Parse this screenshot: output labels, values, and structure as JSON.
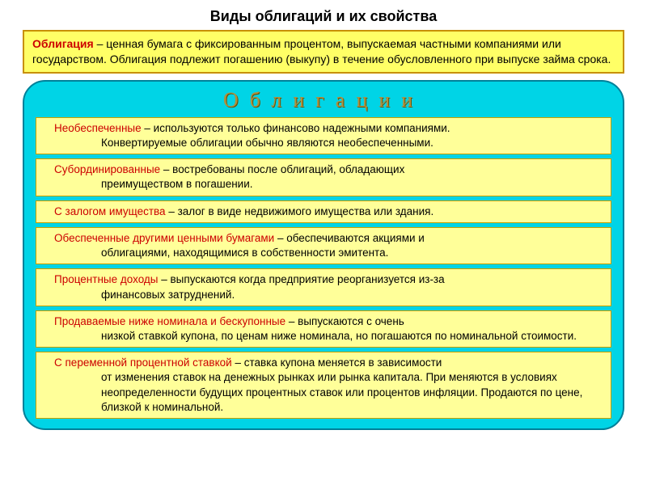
{
  "title": "Виды облигаций и их свойства",
  "definition": {
    "term": "Облигация",
    "dash": " – ",
    "text": "ценная бумага с фиксированным процентом, выпускаемая частными компаниями или государством. Облигация подлежит погашению (выкупу) в течение обусловленного при выпуске займа срока."
  },
  "panel_header": "Облигации",
  "items": [
    {
      "term": "Необеспеченные",
      "text": " – используются только финансово надежными компаниями.",
      "cont": "Конвертируемые облигации обычно являются необеспеченными."
    },
    {
      "term": "Субординированные",
      "text": " – востребованы после облигаций, обладающих",
      "cont": "преимуществом в погашении."
    },
    {
      "term": "С залогом имущества",
      "text": " – залог в виде недвижимого имущества или здания.",
      "cont": ""
    },
    {
      "term": "Обеспеченные другими ценными бумагами",
      "text": " – обеспечиваются акциями и",
      "cont": "облигациями, находящимися в собственности эмитента."
    },
    {
      "term": "Процентные доходы",
      "text": " – выпускаются когда предприятие реорганизуется из-за",
      "cont": "финансовых затруднений."
    },
    {
      "term": "Продаваемые ниже номинала и бескупонные",
      "text": " – выпускаются с очень",
      "cont": "низкой ставкой купона, по ценам ниже номинала, но погашаются по номинальной стоимости."
    },
    {
      "term": "С переменной процентной ставкой",
      "text": " – ставка купона меняется в зависимости",
      "cont": "от изменения ставок на денежных рынках или рынка капитала. При меняются в условиях неопределенности будущих процентных ставок или процентов инфляции. Продаются по цене, близкой к номинальной."
    }
  ],
  "colors": {
    "bg": "#ffffff",
    "cyan_panel": "#00d4e6",
    "panel_border": "#008099",
    "yellow_box": "#ffff66",
    "yellow_item": "#ffff99",
    "box_border": "#c89000",
    "term_color": "#cc0000",
    "header_text": "#b09040"
  },
  "fonts": {
    "body": "Arial",
    "panel_header": "Times New Roman",
    "title_size": 18,
    "def_size": 14,
    "item_size": 13.5,
    "panel_header_size": 26
  }
}
